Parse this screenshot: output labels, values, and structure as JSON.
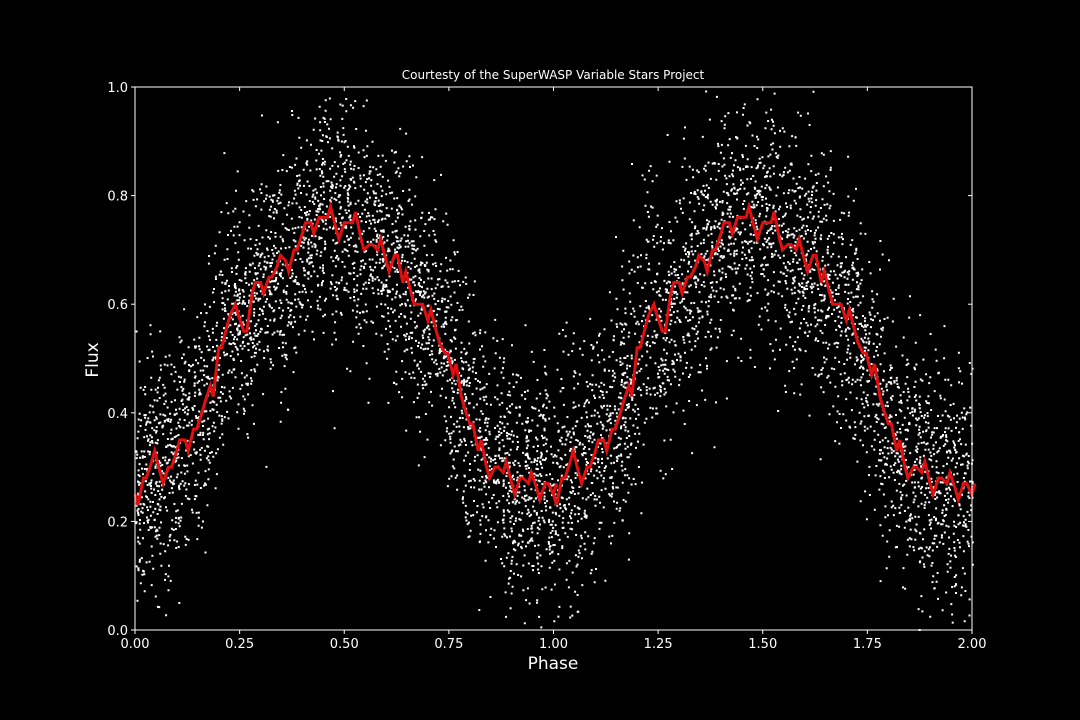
{
  "colors": {
    "background": "#000000",
    "foreground": "#ffffff",
    "scatter": "#ffffff",
    "fit_line": "#e01010"
  },
  "chart_data": {
    "type": "scatter",
    "title": "Courtesty of the SuperWASP Variable Stars Project",
    "xlabel": "Phase",
    "ylabel": "Flux",
    "xlim": [
      0.0,
      2.0
    ],
    "ylim": [
      0.0,
      1.0
    ],
    "x_ticks": [
      0.0,
      0.25,
      0.5,
      0.75,
      1.0,
      1.25,
      1.5,
      1.75,
      2.0
    ],
    "x_tick_labels": [
      "0.00",
      "0.25",
      "0.50",
      "0.75",
      "1.00",
      "1.25",
      "1.50",
      "1.75",
      "2.00"
    ],
    "y_ticks": [
      0.0,
      0.2,
      0.4,
      0.6,
      0.8,
      1.0
    ],
    "y_tick_labels": [
      "0.0",
      "0.2",
      "0.4",
      "0.6",
      "0.8",
      "1.0"
    ],
    "grid": false,
    "series": [
      {
        "kind": "scatter",
        "color": "#ffffff",
        "description_of_distribution": "dense cloud of individual photometric points following the sinusoidal light curve, spread roughly ±0.2 in flux around the binned curve, repeated over two phase cycles",
        "approx_point_count": 6000
      },
      {
        "kind": "step-line",
        "color": "#e01010",
        "x": [
          0.0,
          0.02,
          0.04,
          0.06,
          0.08,
          0.1,
          0.12,
          0.14,
          0.16,
          0.18,
          0.2,
          0.22,
          0.24,
          0.26,
          0.28,
          0.3,
          0.32,
          0.34,
          0.36,
          0.38,
          0.4,
          0.42,
          0.44,
          0.46,
          0.48,
          0.5,
          0.52,
          0.54,
          0.56,
          0.58,
          0.6,
          0.62,
          0.64,
          0.66,
          0.68,
          0.7,
          0.72,
          0.74,
          0.76,
          0.78,
          0.8,
          0.82,
          0.84,
          0.86,
          0.88,
          0.9,
          0.92,
          0.94,
          0.96,
          0.98,
          1.0
        ],
        "y": [
          0.25,
          0.28,
          0.31,
          0.29,
          0.3,
          0.33,
          0.35,
          0.37,
          0.4,
          0.45,
          0.52,
          0.56,
          0.6,
          0.55,
          0.62,
          0.64,
          0.65,
          0.67,
          0.68,
          0.7,
          0.73,
          0.75,
          0.76,
          0.76,
          0.74,
          0.75,
          0.75,
          0.72,
          0.71,
          0.7,
          0.68,
          0.69,
          0.64,
          0.62,
          0.6,
          0.57,
          0.55,
          0.51,
          0.47,
          0.43,
          0.38,
          0.33,
          0.3,
          0.3,
          0.29,
          0.27,
          0.28,
          0.27,
          0.26,
          0.27,
          0.25
        ]
      }
    ]
  }
}
